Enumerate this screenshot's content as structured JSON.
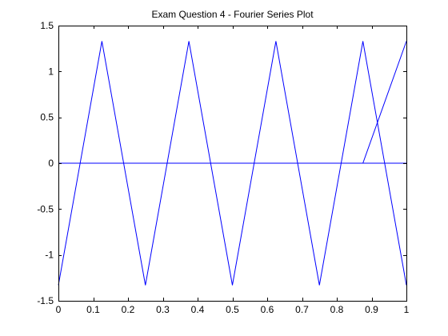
{
  "chart_data": {
    "type": "line",
    "title": "Exam Question 4 - Fourier Series Plot",
    "xlabel": "",
    "ylabel": "",
    "xlim": [
      0,
      1
    ],
    "ylim": [
      -1.5,
      1.5
    ],
    "xticks": [
      0,
      0.1,
      0.2,
      0.3,
      0.4,
      0.5,
      0.6,
      0.7,
      0.8,
      0.9,
      1
    ],
    "xtick_labels": [
      "0",
      "0.1",
      "0.2",
      "0.3",
      "0.4",
      "0.5",
      "0.6",
      "0.7",
      "0.8",
      "0.9",
      "1"
    ],
    "yticks": [
      -1.5,
      -1,
      -0.5,
      0,
      0.5,
      1,
      1.5
    ],
    "ytick_labels": [
      "-1.5",
      "-1",
      "-0.5",
      "0",
      "0.5",
      "1",
      "1.5"
    ],
    "grid": false,
    "series": [
      {
        "x": [
          0,
          0.125,
          0.25,
          0.375,
          0.5,
          0.625,
          0.75,
          0.875,
          1
        ],
        "y": [
          -1.33,
          1.33,
          -1.33,
          1.33,
          -1.33,
          1.33,
          -1.33,
          1.33,
          -1.33
        ]
      },
      {
        "x": [
          0,
          0.875,
          1
        ],
        "y": [
          0,
          0,
          1.33
        ]
      },
      {
        "x": [
          0.875,
          1
        ],
        "y": [
          0,
          0
        ]
      }
    ],
    "line_color": "#0000ff",
    "axis_color": "#000000",
    "plot_background": "#ffffff",
    "figure_background": "#ffffff"
  }
}
